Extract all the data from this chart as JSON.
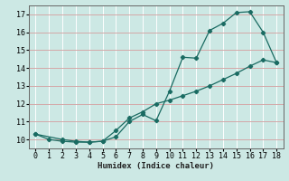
{
  "xlabel": "Humidex (Indice chaleur)",
  "bg_color": "#cce8e4",
  "line_color": "#1a6b62",
  "grid_white": "#ffffff",
  "grid_pink": "#d4a8a8",
  "xlim": [
    -0.5,
    18.5
  ],
  "ylim": [
    9.5,
    17.5
  ],
  "xticks": [
    0,
    1,
    2,
    3,
    4,
    5,
    6,
    7,
    8,
    9,
    10,
    11,
    12,
    13,
    14,
    15,
    16,
    17,
    18
  ],
  "yticks": [
    10,
    11,
    12,
    13,
    14,
    15,
    16,
    17
  ],
  "curve1_x": [
    0,
    1,
    2,
    3,
    4,
    5,
    6,
    7,
    8,
    9,
    10,
    11,
    12,
    13,
    14,
    15,
    16,
    17,
    18
  ],
  "curve1_y": [
    10.3,
    10.0,
    9.9,
    9.85,
    9.85,
    9.9,
    10.15,
    11.0,
    11.4,
    11.05,
    12.7,
    14.6,
    14.55,
    16.1,
    16.5,
    17.1,
    17.15,
    16.0,
    14.3
  ],
  "curve2_x": [
    0,
    2,
    3,
    4,
    5,
    6,
    7,
    8,
    9,
    10,
    11,
    12,
    13,
    14,
    15,
    16,
    17,
    18
  ],
  "curve2_y": [
    10.3,
    10.0,
    9.9,
    9.85,
    9.9,
    10.5,
    11.2,
    11.55,
    12.0,
    12.2,
    12.45,
    12.7,
    13.0,
    13.35,
    13.7,
    14.1,
    14.45,
    14.3
  ]
}
